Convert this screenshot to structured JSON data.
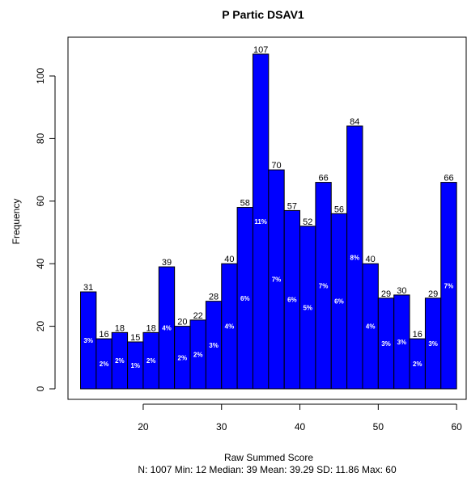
{
  "chart_data": {
    "type": "bar",
    "title": "P Partic DSAV1",
    "xlabel": "Raw Summed Score",
    "ylabel": "Frequency",
    "stats_line": "N: 1007 Min: 12  Median: 39  Mean: 39.29  SD: 11.86  Max: 60",
    "bar_color": "#0000ff",
    "border_color": "#000000",
    "xlim": [
      12,
      60
    ],
    "ylim": [
      0,
      107
    ],
    "x_ticks": [
      20,
      30,
      40,
      50,
      60
    ],
    "y_ticks": [
      0,
      20,
      40,
      60,
      80,
      100
    ],
    "bin_width": 2,
    "bins": [
      {
        "start": 12,
        "end": 14,
        "count": 31,
        "count_label": "31",
        "pct_label": "3%"
      },
      {
        "start": 14,
        "end": 16,
        "count": 16,
        "count_label": "16",
        "pct_label": "2%"
      },
      {
        "start": 16,
        "end": 18,
        "count": 18,
        "count_label": "18",
        "pct_label": "2%"
      },
      {
        "start": 18,
        "end": 20,
        "count": 15,
        "count_label": "15",
        "pct_label": "1%"
      },
      {
        "start": 20,
        "end": 22,
        "count": 18,
        "count_label": "18",
        "pct_label": "2%"
      },
      {
        "start": 22,
        "end": 24,
        "count": 39,
        "count_label": "39",
        "pct_label": "4%"
      },
      {
        "start": 24,
        "end": 26,
        "count": 20,
        "count_label": "20",
        "pct_label": "2%"
      },
      {
        "start": 26,
        "end": 28,
        "count": 22,
        "count_label": "22",
        "pct_label": "2%"
      },
      {
        "start": 28,
        "end": 30,
        "count": 28,
        "count_label": "28",
        "pct_label": "3%"
      },
      {
        "start": 30,
        "end": 32,
        "count": 40,
        "count_label": "40",
        "pct_label": "4%"
      },
      {
        "start": 32,
        "end": 34,
        "count": 58,
        "count_label": "58",
        "pct_label": "6%"
      },
      {
        "start": 34,
        "end": 36,
        "count": 107,
        "count_label": "107",
        "pct_label": "11%"
      },
      {
        "start": 36,
        "end": 38,
        "count": 70,
        "count_label": "70",
        "pct_label": "7%"
      },
      {
        "start": 38,
        "end": 40,
        "count": 57,
        "count_label": "57",
        "pct_label": "6%"
      },
      {
        "start": 40,
        "end": 42,
        "count": 52,
        "count_label": "52",
        "pct_label": "5%"
      },
      {
        "start": 42,
        "end": 44,
        "count": 66,
        "count_label": "66",
        "pct_label": "7%"
      },
      {
        "start": 44,
        "end": 46,
        "count": 56,
        "count_label": "56",
        "pct_label": "6%"
      },
      {
        "start": 46,
        "end": 48,
        "count": 84,
        "count_label": "84",
        "pct_label": "8%"
      },
      {
        "start": 48,
        "end": 50,
        "count": 40,
        "count_label": "40",
        "pct_label": "4%"
      },
      {
        "start": 50,
        "end": 52,
        "count": 29,
        "count_label": "29",
        "pct_label": "3%"
      },
      {
        "start": 52,
        "end": 54,
        "count": 30,
        "count_label": "30",
        "pct_label": "3%"
      },
      {
        "start": 54,
        "end": 56,
        "count": 16,
        "count_label": "16",
        "pct_label": "2%"
      },
      {
        "start": 56,
        "end": 58,
        "count": 29,
        "count_label": "29",
        "pct_label": "3%"
      },
      {
        "start": 58,
        "end": 60,
        "count": 66,
        "count_label": "66",
        "pct_label": "7%"
      }
    ]
  }
}
